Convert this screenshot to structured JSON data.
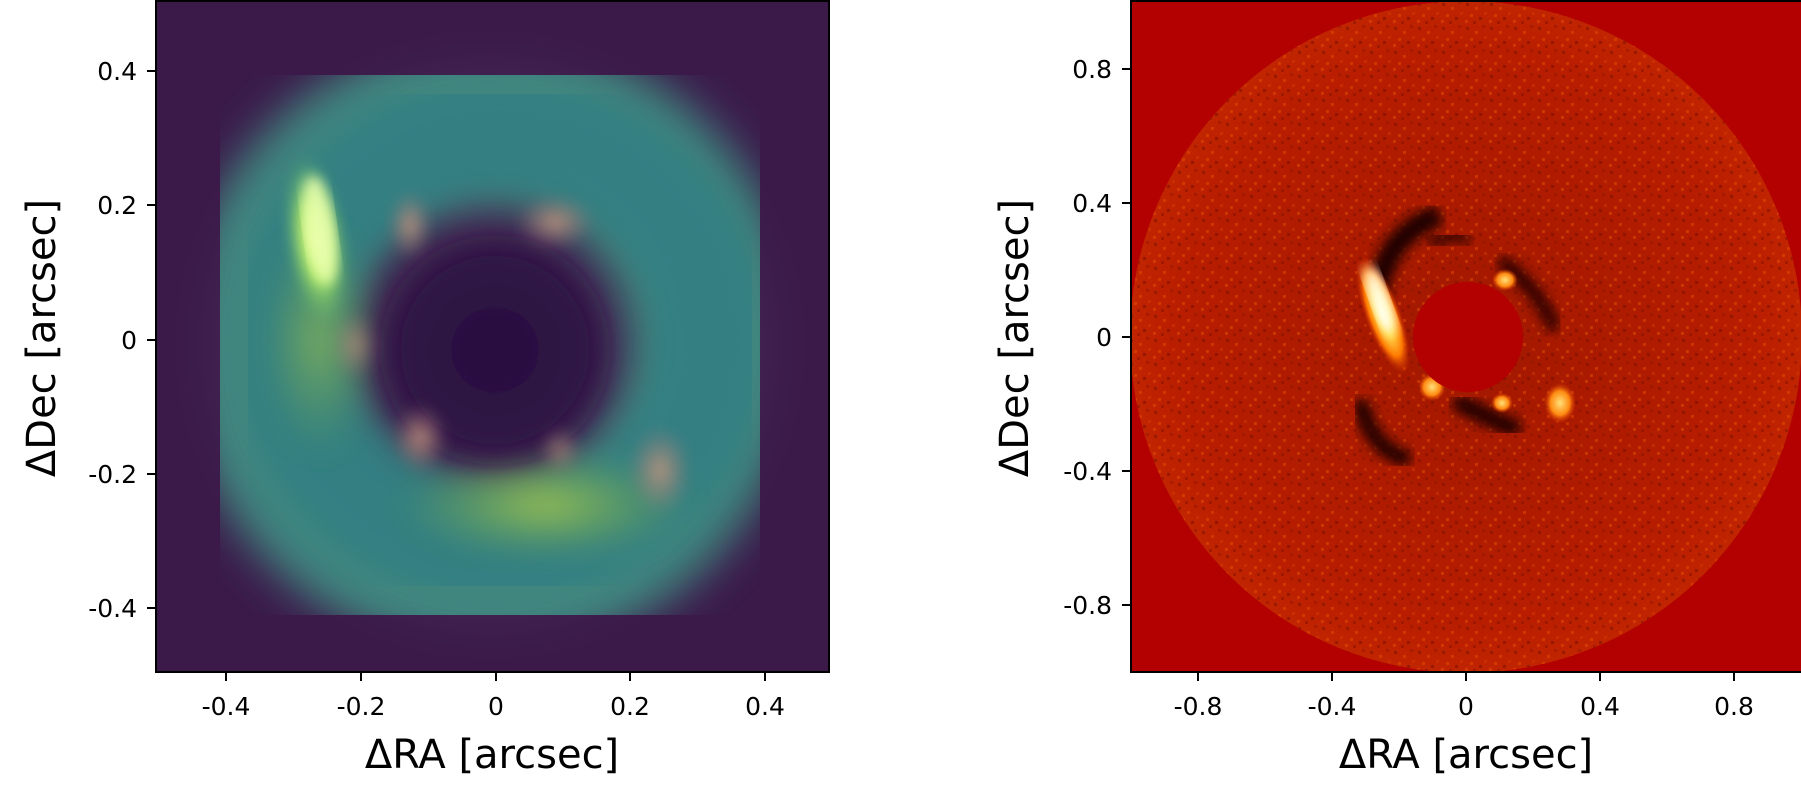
{
  "left_panel": {
    "xlabel": "ΔRA [arcsec]",
    "ylabel": "ΔDec [arcsec]",
    "x_ticks": [
      "-0.4",
      "-0.2",
      "0",
      "0.2",
      "0.4"
    ],
    "y_ticks": [
      "0.4",
      "0.2",
      "0",
      "-0.2",
      "-0.4"
    ],
    "xlim": [
      -0.5,
      0.5
    ],
    "ylim": [
      -0.5,
      0.5
    ],
    "colormap": "viridis",
    "background_color": "#3b1a4a"
  },
  "right_panel": {
    "xlabel": "ΔRA [arcsec]",
    "ylabel": "ΔDec [arcsec]",
    "x_ticks": [
      "-0.8",
      "-0.4",
      "0",
      "0.4",
      "0.8"
    ],
    "y_ticks": [
      "0.8",
      "0.4",
      "0",
      "-0.4",
      "-0.8"
    ],
    "xlim": [
      -1.0,
      1.0
    ],
    "ylim": [
      -1.0,
      1.0
    ],
    "colormap": "hot",
    "background_color": "#b30000"
  }
}
